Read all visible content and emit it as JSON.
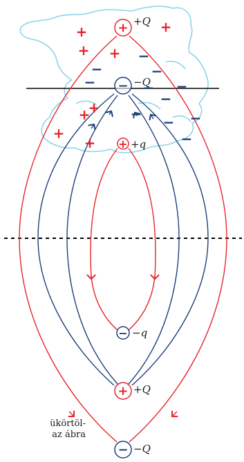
{
  "colors": {
    "positive": "#e8242b",
    "negative": "#1c3f7a",
    "cloud": "#8fd3ea",
    "ground_line": "#000000",
    "mirror_line": "#000000"
  },
  "charges": {
    "top_positive": "+Q",
    "top_negative": "−Q",
    "small_positive": "+q",
    "small_negative": "−q",
    "image_positive": "+Q",
    "image_negative": "−Q"
  },
  "caption": {
    "line1": "ükörtöl-",
    "line2": "az ábra"
  },
  "cloud_signs": {
    "plus": "+",
    "minus": "−"
  }
}
